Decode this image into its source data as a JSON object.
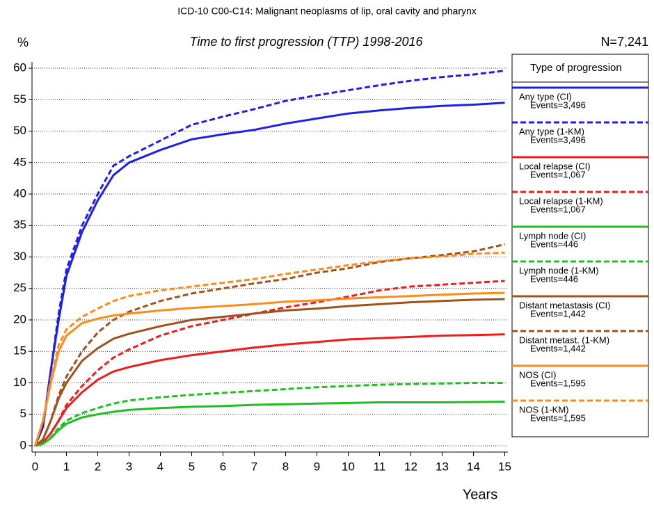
{
  "chart_data": {
    "type": "line",
    "title": "ICD-10 C00-C14: Malignant neoplasms of lip, oral cavity and pharynx",
    "subtitle": "Time to first progression (TTP) 1998-2016",
    "annotation": "N=7,241",
    "y_label": "%",
    "x_label": "Years",
    "legend_title": "Type of progression",
    "x": [
      0,
      0.25,
      0.5,
      0.75,
      1,
      1.5,
      2,
      2.5,
      3,
      4,
      5,
      6,
      7,
      8,
      9,
      10,
      11,
      12,
      13,
      14,
      15
    ],
    "xlim": [
      -0.1,
      15.1
    ],
    "xticks": [
      0,
      1,
      2,
      3,
      4,
      5,
      6,
      7,
      8,
      9,
      10,
      11,
      12,
      13,
      14,
      15
    ],
    "ylim": [
      -1,
      61
    ],
    "yticks": [
      0,
      5,
      10,
      15,
      20,
      25,
      30,
      35,
      40,
      45,
      50,
      55,
      60
    ],
    "grid": true,
    "series": [
      {
        "name": "Any type (CI)",
        "events_label": "Events=3,496",
        "color": "#1f1fe6",
        "dashed": false,
        "values": [
          0,
          3,
          12,
          20,
          27,
          34,
          39,
          43,
          45,
          47,
          48.7,
          49.5,
          50.2,
          51.2,
          52,
          52.8,
          53.3,
          53.7,
          54,
          54.2,
          54.5
        ]
      },
      {
        "name": "Any type (1-KM)",
        "events_label": "Events=3,496",
        "color": "#1f1fe6",
        "dashed": true,
        "values": [
          0,
          3,
          12,
          21,
          28,
          35,
          40,
          44.5,
          46,
          48.5,
          51,
          52.3,
          53.5,
          54.8,
          55.7,
          56.5,
          57.3,
          58,
          58.6,
          59,
          59.6
        ]
      },
      {
        "name": "Local relapse (CI)",
        "events_label": "Events=1,067",
        "color": "#ee1c1c",
        "dashed": false,
        "values": [
          0,
          0.5,
          2,
          4,
          6,
          8.5,
          10.5,
          11.8,
          12.5,
          13.6,
          14.4,
          15,
          15.6,
          16.1,
          16.5,
          16.9,
          17.1,
          17.3,
          17.5,
          17.6,
          17.7
        ]
      },
      {
        "name": "Local relapse (1-KM)",
        "events_label": "Events=1,067",
        "color": "#ee1c1c",
        "dashed": true,
        "values": [
          0,
          0.5,
          2,
          4,
          6.5,
          9.5,
          12,
          14,
          15.3,
          17.5,
          19,
          20,
          21,
          22,
          22.8,
          23.7,
          24.7,
          25.3,
          25.6,
          25.9,
          26.2
        ]
      },
      {
        "name": "Lymph node (CI)",
        "events_label": "Events=446",
        "color": "#1fbf1f",
        "dashed": false,
        "values": [
          0,
          0.3,
          1.2,
          2.5,
          3.5,
          4.5,
          5,
          5.4,
          5.7,
          6,
          6.2,
          6.3,
          6.5,
          6.6,
          6.7,
          6.8,
          6.9,
          6.9,
          6.9,
          6.95,
          7
        ]
      },
      {
        "name": "Lymph node (1-KM)",
        "events_label": "Events=446",
        "color": "#1fbf1f",
        "dashed": true,
        "values": [
          0,
          0.3,
          1.3,
          2.8,
          4,
          5.2,
          6,
          6.7,
          7.2,
          7.7,
          8.1,
          8.4,
          8.7,
          9,
          9.3,
          9.5,
          9.7,
          9.8,
          9.9,
          10,
          10
        ]
      },
      {
        "name": "Distant metastasis (CI)",
        "events_label": "Events=1,442",
        "color": "#a0521c",
        "dashed": false,
        "values": [
          0,
          1,
          4,
          7.5,
          10,
          13.5,
          15.5,
          17,
          17.8,
          19,
          20,
          20.5,
          21,
          21.5,
          21.8,
          22.2,
          22.5,
          22.8,
          23,
          23.2,
          23.3
        ]
      },
      {
        "name": "Distant metast. (1-KM)",
        "events_label": "Events=1,442",
        "color": "#a0521c",
        "dashed": true,
        "values": [
          0,
          1,
          4,
          8,
          11,
          15,
          18,
          20,
          21.3,
          23,
          24.2,
          25,
          25.8,
          26.5,
          27.5,
          28.2,
          29.2,
          29.8,
          30.3,
          30.9,
          32
        ]
      },
      {
        "name": "NOS (CI)",
        "events_label": "Events=1,595",
        "color": "#ff8c1a",
        "dashed": false,
        "values": [
          0,
          4,
          10,
          15,
          17.5,
          19.5,
          20.2,
          20.7,
          21,
          21.5,
          21.9,
          22.2,
          22.5,
          22.9,
          23.1,
          23.4,
          23.6,
          23.8,
          24,
          24.2,
          24.3
        ]
      },
      {
        "name": "NOS (1-KM)",
        "events_label": "Events=1,595",
        "color": "#ff8c1a",
        "dashed": true,
        "values": [
          0,
          4,
          10.5,
          16,
          18.5,
          20.5,
          21.8,
          23,
          23.8,
          24.7,
          25.3,
          25.9,
          26.5,
          27.3,
          28,
          28.7,
          29.3,
          29.8,
          30.1,
          30.5,
          30.7
        ]
      }
    ]
  }
}
